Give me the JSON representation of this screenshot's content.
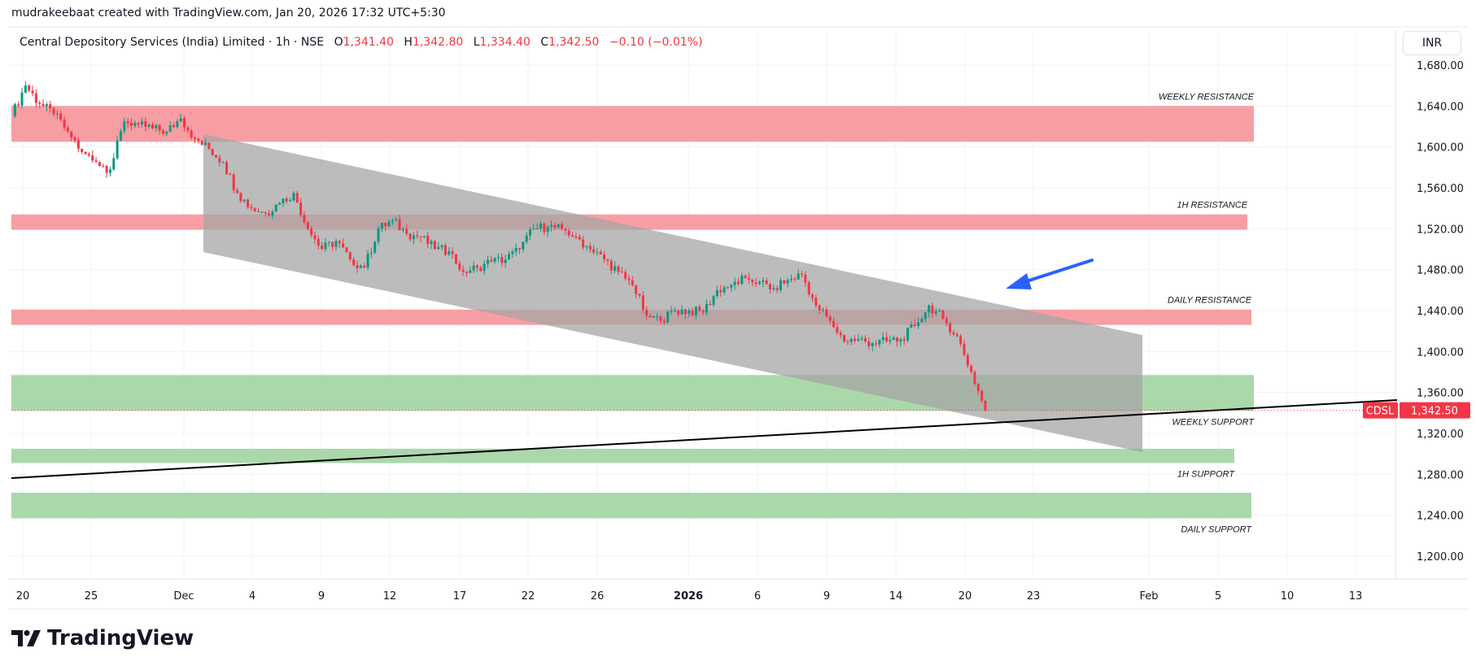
{
  "watermark": "mudrakeebaat created with TradingView.com, Jan 20, 2026 17:32 UTC+5:30",
  "legend": {
    "symbol": "Central Depository Services (India) Limited · 1h · NSE",
    "o_label": "O",
    "o": "1,341.40",
    "h_label": "H",
    "h": "1,342.80",
    "l_label": "L",
    "l": "1,334.40",
    "c_label": "C",
    "c": "1,342.50",
    "change": "−0.10 (−0.01%)"
  },
  "currency_button": "INR",
  "last_price": {
    "ticker": "CDSL",
    "value": "1,342.50",
    "price": 1342.5
  },
  "logo_text": "TradingView",
  "colors": {
    "up": "#089981",
    "down": "#f23645",
    "resistance": "#f7999f",
    "support": "#a5d6a7",
    "channel": "#a6a6a6",
    "arrow": "#2962ff"
  },
  "chart_data": {
    "type": "candlestick",
    "ylim": [
      1180,
      1690
    ],
    "y_ticks": [
      "1,680.00",
      "1,640.00",
      "1,600.00",
      "1,560.00",
      "1,520.00",
      "1,480.00",
      "1,440.00",
      "1,400.00",
      "1,360.00",
      "1,320.00",
      "1,280.00",
      "1,240.00",
      "1,200.00"
    ],
    "y_tick_values": [
      1680,
      1640,
      1600,
      1560,
      1520,
      1480,
      1440,
      1400,
      1360,
      1320,
      1280,
      1240,
      1200
    ],
    "x_ticks": [
      {
        "label": "20"
      },
      {
        "label": "25"
      },
      {
        "label": "Dec"
      },
      {
        "label": "4"
      },
      {
        "label": "9"
      },
      {
        "label": "12"
      },
      {
        "label": "17"
      },
      {
        "label": "22"
      },
      {
        "label": "26"
      },
      {
        "label": "2026",
        "bold": true
      },
      {
        "label": "6"
      },
      {
        "label": "9"
      },
      {
        "label": "14"
      },
      {
        "label": "20"
      },
      {
        "label": "23"
      },
      {
        "label": "Feb"
      },
      {
        "label": "5"
      },
      {
        "label": "10"
      },
      {
        "label": "13"
      }
    ],
    "grid": true,
    "closes": [
      1630,
      1660,
      1642,
      1632,
      1615,
      1595,
      1585,
      1578,
      1625,
      1622,
      1618,
      1615,
      1628,
      1608,
      1598,
      1585,
      1555,
      1540,
      1535,
      1545,
      1555,
      1520,
      1500,
      1508,
      1490,
      1482,
      1520,
      1528,
      1515,
      1512,
      1500,
      1498,
      1478,
      1482,
      1488,
      1490,
      1500,
      1520,
      1522,
      1520,
      1512,
      1500,
      1490,
      1478,
      1465,
      1435,
      1430,
      1440,
      1440,
      1438,
      1460,
      1465,
      1472,
      1468,
      1462,
      1470,
      1475,
      1445,
      1430,
      1410,
      1412,
      1408,
      1410,
      1412,
      1425,
      1445,
      1432,
      1415,
      1380,
      1342.5
    ],
    "zones": [
      {
        "label": "WEEKLY RESISTANCE",
        "type": "resistance",
        "top": 1640,
        "bottom": 1605
      },
      {
        "label": "1H RESISTANCE",
        "type": "resistance",
        "top": 1534,
        "bottom": 1519
      },
      {
        "label": "DAILY RESISTANCE",
        "type": "resistance",
        "top": 1441,
        "bottom": 1426
      },
      {
        "label": "WEEKLY SUPPORT",
        "type": "support",
        "top": 1377,
        "bottom": 1342
      },
      {
        "label": "1H SUPPORT",
        "type": "support",
        "top": 1305,
        "bottom": 1291
      },
      {
        "label": "DAILY SUPPORT",
        "type": "support",
        "top": 1262,
        "bottom": 1237
      }
    ]
  }
}
